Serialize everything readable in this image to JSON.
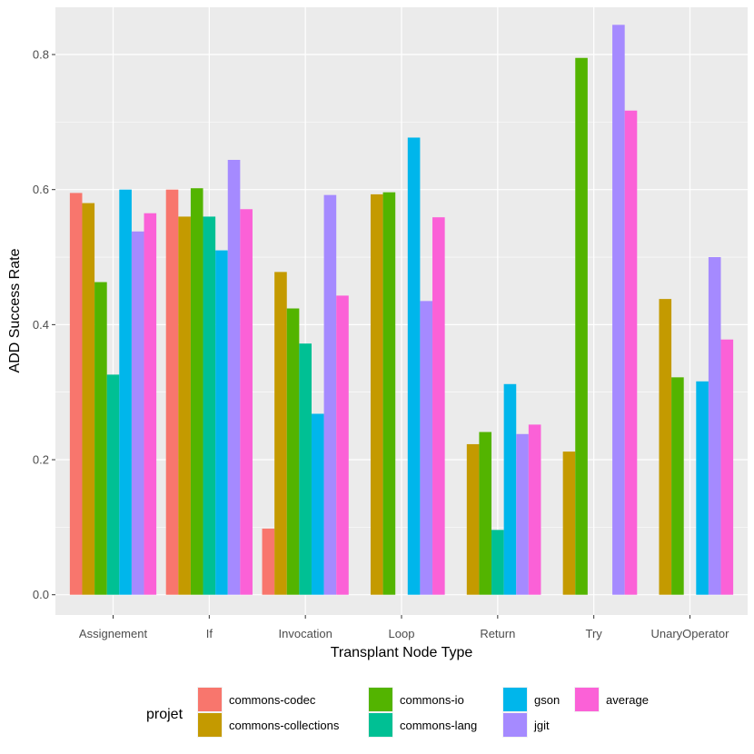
{
  "chart_data": {
    "type": "bar",
    "xlabel": "Transplant Node Type",
    "ylabel": "ADD Success Rate",
    "ylim": [
      -0.03,
      0.87
    ],
    "yticks": [
      0.0,
      0.2,
      0.4,
      0.6,
      0.8
    ],
    "ytick_labels": [
      "0.0",
      "0.2",
      "0.4",
      "0.6",
      "0.8"
    ],
    "grid": true,
    "legend_title": "projet",
    "legend_position": "bottom",
    "categories": [
      "Assignement",
      "If",
      "Invocation",
      "Loop",
      "Return",
      "Try",
      "UnaryOperator"
    ],
    "series": [
      {
        "name": "commons-codec",
        "color": "#F8766D",
        "values": [
          0.595,
          0.6,
          0.098,
          null,
          null,
          null,
          null
        ]
      },
      {
        "name": "commons-collections",
        "color": "#C49A00",
        "values": [
          0.58,
          0.56,
          0.478,
          0.593,
          0.223,
          0.212,
          0.438
        ]
      },
      {
        "name": "commons-io",
        "color": "#53B400",
        "values": [
          0.463,
          0.602,
          0.424,
          0.596,
          0.241,
          0.795,
          0.322
        ]
      },
      {
        "name": "commons-lang",
        "color": "#00C094",
        "values": [
          0.326,
          0.56,
          0.372,
          null,
          0.096,
          null,
          null
        ]
      },
      {
        "name": "gson",
        "color": "#00B6EB",
        "values": [
          0.6,
          0.51,
          0.268,
          0.677,
          0.312,
          null,
          0.316
        ]
      },
      {
        "name": "jgit",
        "color": "#A58AFF",
        "values": [
          0.538,
          0.644,
          0.592,
          0.435,
          0.238,
          0.844,
          0.5
        ]
      },
      {
        "name": "average",
        "color": "#FB61D7",
        "values": [
          0.565,
          0.571,
          0.443,
          0.559,
          0.252,
          0.717,
          0.378
        ]
      }
    ]
  }
}
